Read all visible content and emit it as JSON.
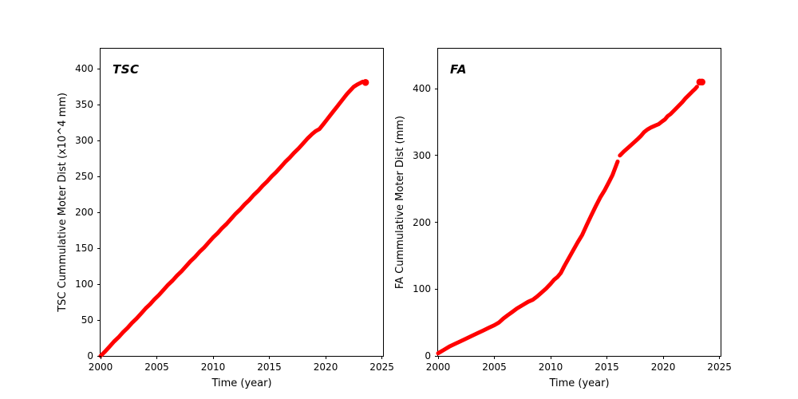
{
  "figure": {
    "background": "#ffffff",
    "curve_color": "#ff0000",
    "axis_color": "#000000"
  },
  "chart_data": [
    {
      "type": "scatter",
      "panel_label": "TSC",
      "xlabel": "Time (year)",
      "ylabel": "TSC Cummulative Moter Dist (x10^4 mm)",
      "xlim": [
        2000,
        2025.1
      ],
      "ylim": [
        0,
        428
      ],
      "xticks": [
        2000,
        2005,
        2010,
        2015,
        2020,
        2025
      ],
      "yticks": [
        0,
        50,
        100,
        150,
        200,
        250,
        300,
        350,
        400
      ],
      "grid": false,
      "legend": "none",
      "color": "#ff0000",
      "series": [
        {
          "name": "tsc-cumulative-distance",
          "segments": [
            [
              [
                2000,
                0
              ],
              [
                2000.4,
                6
              ],
              [
                2000.8,
                13
              ],
              [
                2001.2,
                20
              ],
              [
                2001.6,
                26
              ],
              [
                2002,
                33
              ],
              [
                2002.4,
                39
              ],
              [
                2002.8,
                46
              ],
              [
                2003.2,
                52
              ],
              [
                2003.6,
                59
              ],
              [
                2004,
                66
              ],
              [
                2004.4,
                72
              ],
              [
                2004.8,
                79
              ],
              [
                2005.2,
                85
              ],
              [
                2005.6,
                92
              ],
              [
                2006,
                99
              ],
              [
                2006.4,
                105
              ],
              [
                2006.8,
                112
              ],
              [
                2007.2,
                118
              ],
              [
                2007.6,
                125
              ],
              [
                2008,
                132
              ],
              [
                2008.4,
                138
              ],
              [
                2008.8,
                145
              ],
              [
                2009.2,
                151
              ],
              [
                2009.6,
                158
              ],
              [
                2010,
                165
              ],
              [
                2010.4,
                171
              ],
              [
                2010.8,
                178
              ],
              [
                2011.2,
                184
              ],
              [
                2011.6,
                191
              ],
              [
                2012,
                198
              ],
              [
                2012.4,
                204
              ],
              [
                2012.8,
                211
              ],
              [
                2013.2,
                217
              ],
              [
                2013.6,
                224
              ],
              [
                2014,
                230
              ],
              [
                2014.4,
                237
              ],
              [
                2014.8,
                243
              ],
              [
                2015.2,
                250
              ],
              [
                2015.6,
                256
              ],
              [
                2016,
                263
              ],
              [
                2016.4,
                270
              ],
              [
                2016.8,
                276
              ],
              [
                2017.2,
                283
              ],
              [
                2017.6,
                289
              ],
              [
                2018,
                296
              ],
              [
                2018.4,
                303
              ],
              [
                2018.8,
                309
              ],
              [
                2019.1,
                313
              ],
              [
                2019.45,
                316
              ],
              [
                2019.8,
                323
              ],
              [
                2020.1,
                329
              ],
              [
                2020.4,
                335
              ],
              [
                2020.7,
                341
              ],
              [
                2021,
                347
              ],
              [
                2021.3,
                353
              ],
              [
                2021.6,
                359
              ],
              [
                2021.9,
                365
              ],
              [
                2022.2,
                370
              ],
              [
                2022.5,
                375
              ],
              [
                2022.8,
                378
              ],
              [
                2023.05,
                380
              ],
              [
                2023.3,
                382
              ]
            ]
          ],
          "dots": [
            [
              2023.55,
              381
            ]
          ]
        }
      ]
    },
    {
      "type": "scatter",
      "panel_label": "FA",
      "xlabel": "Time (year)",
      "ylabel": "FA Cummulative Moter Dist (mm)",
      "xlim": [
        2000,
        2025.1
      ],
      "ylim": [
        0,
        460
      ],
      "xticks": [
        2000,
        2005,
        2010,
        2015,
        2020,
        2025
      ],
      "yticks": [
        0,
        100,
        200,
        300,
        400
      ],
      "grid": false,
      "legend": "none",
      "color": "#ff0000",
      "series": [
        {
          "name": "fa-cumulative-distance",
          "segments": [
            [
              [
                2000,
                4
              ],
              [
                2000.5,
                9
              ],
              [
                2001,
                14
              ],
              [
                2001.5,
                18
              ],
              [
                2002,
                22
              ],
              [
                2002.5,
                26
              ],
              [
                2003,
                30
              ],
              [
                2003.5,
                34
              ],
              [
                2004,
                38
              ],
              [
                2004.5,
                42
              ],
              [
                2005,
                46
              ],
              [
                2005.4,
                50
              ],
              [
                2005.8,
                56
              ],
              [
                2006.2,
                61
              ],
              [
                2006.6,
                66
              ],
              [
                2007,
                71
              ],
              [
                2007.5,
                76
              ],
              [
                2008,
                81
              ],
              [
                2008.4,
                84
              ],
              [
                2008.8,
                89
              ],
              [
                2009.2,
                95
              ],
              [
                2009.6,
                101
              ],
              [
                2010,
                108
              ],
              [
                2010.3,
                114
              ],
              [
                2010.6,
                118
              ],
              [
                2010.9,
                124
              ],
              [
                2011.2,
                134
              ],
              [
                2011.6,
                146
              ],
              [
                2012,
                158
              ],
              [
                2012.4,
                170
              ],
              [
                2012.8,
                181
              ],
              [
                2013.2,
                196
              ],
              [
                2013.6,
                210
              ],
              [
                2014,
                224
              ],
              [
                2014.4,
                237
              ],
              [
                2014.8,
                248
              ],
              [
                2015.2,
                261
              ],
              [
                2015.5,
                271
              ],
              [
                2015.75,
                282
              ],
              [
                2015.95,
                291
              ]
            ],
            [
              [
                2016.15,
                300
              ],
              [
                2016.5,
                306
              ],
              [
                2016.9,
                312
              ],
              [
                2017.3,
                318
              ],
              [
                2017.7,
                324
              ],
              [
                2018,
                329
              ],
              [
                2018.3,
                335
              ],
              [
                2018.6,
                339
              ],
              [
                2018.9,
                342
              ],
              [
                2019.3,
                345
              ],
              [
                2019.6,
                347
              ],
              [
                2019.9,
                351
              ],
              [
                2020.15,
                354
              ],
              [
                2020.4,
                359
              ],
              [
                2020.65,
                362
              ],
              [
                2021,
                368
              ],
              [
                2021.35,
                374
              ],
              [
                2021.7,
                380
              ],
              [
                2022,
                386
              ],
              [
                2022.3,
                391
              ],
              [
                2022.6,
                396
              ],
              [
                2022.85,
                400
              ],
              [
                2023,
                403
              ]
            ]
          ],
          "dots": [
            [
              2023.25,
              410
            ],
            [
              2023.45,
              410
            ]
          ]
        }
      ]
    }
  ]
}
